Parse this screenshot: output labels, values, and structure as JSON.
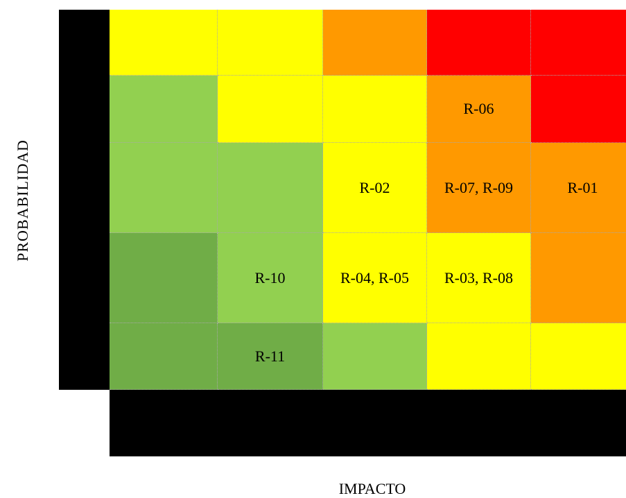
{
  "axes": {
    "y_label": "PROBABILIDAD",
    "x_label": "IMPACTO"
  },
  "colors": {
    "red": "#ff0000",
    "orange": "#ff9900",
    "yellow": "#ffff00",
    "light_green": "#92d050",
    "dark_green": "#70ad47",
    "frame": "#000000"
  },
  "matrix": [
    [
      {
        "color": "yellow",
        "label": ""
      },
      {
        "color": "yellow",
        "label": ""
      },
      {
        "color": "orange",
        "label": ""
      },
      {
        "color": "red",
        "label": ""
      },
      {
        "color": "red",
        "label": ""
      }
    ],
    [
      {
        "color": "light_green",
        "label": ""
      },
      {
        "color": "yellow",
        "label": ""
      },
      {
        "color": "yellow",
        "label": ""
      },
      {
        "color": "orange",
        "label": "R-06"
      },
      {
        "color": "red",
        "label": ""
      }
    ],
    [
      {
        "color": "light_green",
        "label": ""
      },
      {
        "color": "light_green",
        "label": ""
      },
      {
        "color": "yellow",
        "label": "R-02"
      },
      {
        "color": "orange",
        "label": "R-07, R-09"
      },
      {
        "color": "orange",
        "label": "R-01"
      }
    ],
    [
      {
        "color": "dark_green",
        "label": ""
      },
      {
        "color": "light_green",
        "label": "R-10"
      },
      {
        "color": "yellow",
        "label": "R-04, R-05"
      },
      {
        "color": "yellow",
        "label": "R-03, R-08"
      },
      {
        "color": "orange",
        "label": ""
      }
    ],
    [
      {
        "color": "dark_green",
        "label": ""
      },
      {
        "color": "dark_green",
        "label": "R-11"
      },
      {
        "color": "light_green",
        "label": ""
      },
      {
        "color": "yellow",
        "label": ""
      },
      {
        "color": "yellow",
        "label": ""
      }
    ]
  ]
}
